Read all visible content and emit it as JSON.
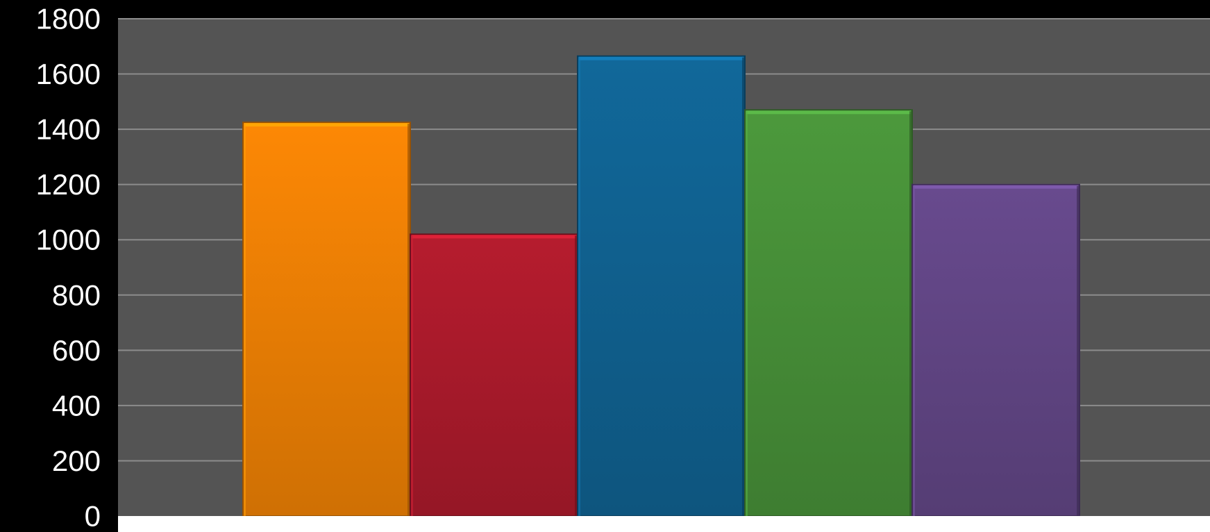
{
  "chart_data": {
    "type": "bar",
    "title": "",
    "xlabel": "",
    "ylabel": "",
    "ylim": [
      0,
      1800
    ],
    "yticks": [
      0,
      200,
      400,
      600,
      800,
      1000,
      1200,
      1400,
      1600,
      1800
    ],
    "grid": true,
    "legend": "none",
    "background_color": "#000000",
    "plot_area_color": "#545454",
    "gridline_color": "#8c8c8c",
    "axis_text_color": "#ffffff",
    "series": [
      {
        "values": [
          1425
        ],
        "color": "#fd8805"
      },
      {
        "values": [
          1020
        ],
        "color": "#b61c2e"
      },
      {
        "values": [
          1665
        ],
        "color": "#11689a"
      },
      {
        "values": [
          1470
        ],
        "color": "#4c993c"
      },
      {
        "values": [
          1200
        ],
        "color": "#684a8e"
      }
    ]
  }
}
